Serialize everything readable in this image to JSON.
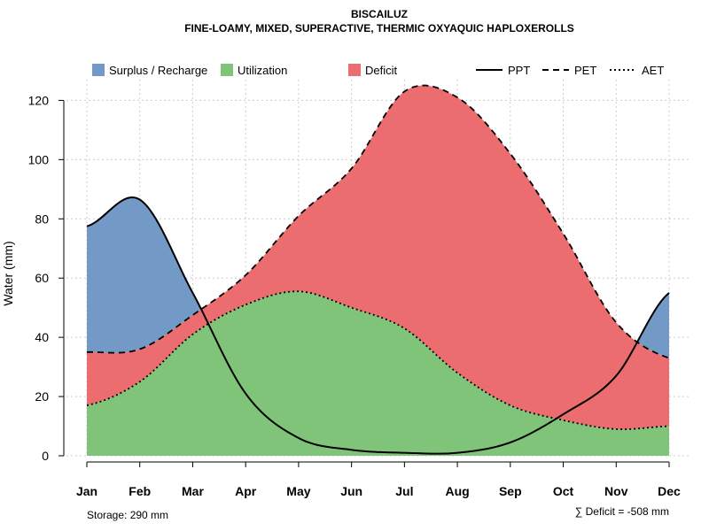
{
  "chart_data": {
    "type": "area",
    "title": "BISCAILUZ",
    "subtitle": "FINE-LOAMY, MIXED, SUPERACTIVE, THERMIC OXYAQUIC HAPLOXEROLLS",
    "xlabel": "",
    "ylabel": "Water (mm)",
    "ylim": [
      0,
      127
    ],
    "yticks": [
      0,
      20,
      40,
      60,
      80,
      100,
      120
    ],
    "categories": [
      "Jan",
      "Feb",
      "Mar",
      "Apr",
      "May",
      "Jun",
      "Jul",
      "Aug",
      "Sep",
      "Oct",
      "Nov",
      "Dec"
    ],
    "grid": true,
    "series": [
      {
        "name": "PPT",
        "style": "solid",
        "values": [
          77.5,
          86.5,
          55,
          21,
          6,
          2,
          1,
          1,
          4.5,
          14,
          27,
          55
        ]
      },
      {
        "name": "PET",
        "style": "dashed",
        "values": [
          35,
          36,
          47.5,
          61,
          81,
          97,
          123,
          121,
          102,
          75,
          45,
          33
        ]
      },
      {
        "name": "AET",
        "style": "dotted",
        "values": [
          17,
          25,
          41,
          51,
          55.5,
          50,
          43,
          28,
          17,
          12,
          9,
          10
        ]
      }
    ],
    "fills": [
      {
        "name": "Surplus / Recharge",
        "color": "#7399C6"
      },
      {
        "name": "Utilization",
        "color": "#80C47A"
      },
      {
        "name": "Deficit",
        "color": "#EB6D6F"
      }
    ],
    "legend": {
      "fill_labels": [
        "Surplus / Recharge",
        "Utilization",
        "Deficit"
      ],
      "line_labels": [
        "PPT",
        "PET",
        "AET"
      ],
      "placement": "top"
    },
    "annotations": {
      "storage": "Storage: 290 mm",
      "deficit": "∑ Deficit = -508 mm"
    }
  }
}
